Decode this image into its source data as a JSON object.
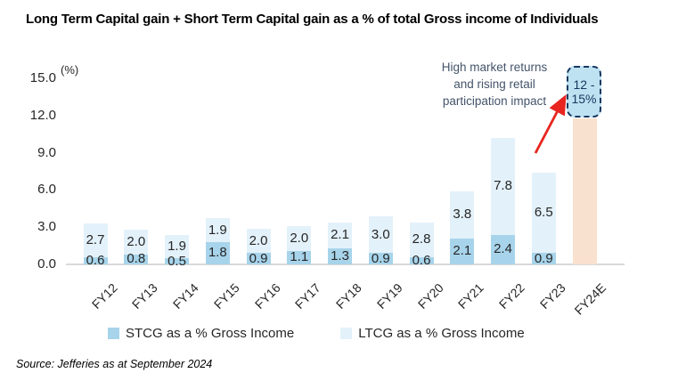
{
  "title": "Long Term Capital gain + Short Term Capital gain as a % of total Gross income of Individuals",
  "source": "Source: Jefferies as at September 2024",
  "axis": {
    "unit_label": "(%)"
  },
  "annotation": {
    "lines": [
      "High market returns",
      "and rising retail",
      "participation impact"
    ],
    "box_label_line1": "12 -",
    "box_label_line2": "15%"
  },
  "legend": [
    {
      "label": "STCG as a % Gross Income",
      "color": "#A7D4EB"
    },
    {
      "label": "LTCG as a % Gross Income",
      "color": "#E3F1FA"
    }
  ],
  "colors": {
    "stcg": "#A7D4EB",
    "ltcg": "#E3F1FA",
    "forecast": "#F8E1CE",
    "box_fill": "#BFE2F2",
    "box_border": "#17375E",
    "arrow": "#E8251F",
    "annotation_text": "#44546A",
    "baseline": "#D9D9D9"
  },
  "chart_data": {
    "type": "bar",
    "stacked": true,
    "title": "Long Term Capital gain + Short Term Capital gain as a % of total Gross income of Individuals",
    "categories": [
      "FY12",
      "FY13",
      "FY14",
      "FY15",
      "FY16",
      "FY17",
      "FY18",
      "FY19",
      "FY20",
      "FY21",
      "FY22",
      "FY23",
      "FY24E"
    ],
    "series": [
      {
        "name": "STCG as a % Gross Income",
        "color": "#A7D4EB",
        "values": [
          0.6,
          0.8,
          0.5,
          1.8,
          0.9,
          1.1,
          1.3,
          0.9,
          0.6,
          2.1,
          2.4,
          0.9,
          null
        ]
      },
      {
        "name": "LTCG as a % Gross Income",
        "color": "#E3F1FA",
        "values": [
          2.7,
          2.0,
          1.9,
          1.9,
          2.0,
          2.0,
          2.1,
          3.0,
          2.8,
          3.8,
          7.8,
          6.5,
          null
        ]
      }
    ],
    "forecast_bar": {
      "category": "FY24E",
      "value": 11.8,
      "color": "#F8E1CE",
      "range_label": "12 - 15%"
    },
    "ylabel": "(%)",
    "yticks": [
      "0.0",
      "3.0",
      "6.0",
      "9.0",
      "12.0",
      "15.0"
    ],
    "ylim": [
      0,
      15.9
    ],
    "grid": false,
    "legend_position": "bottom",
    "annotation": "High market returns and rising retail participation impact"
  }
}
